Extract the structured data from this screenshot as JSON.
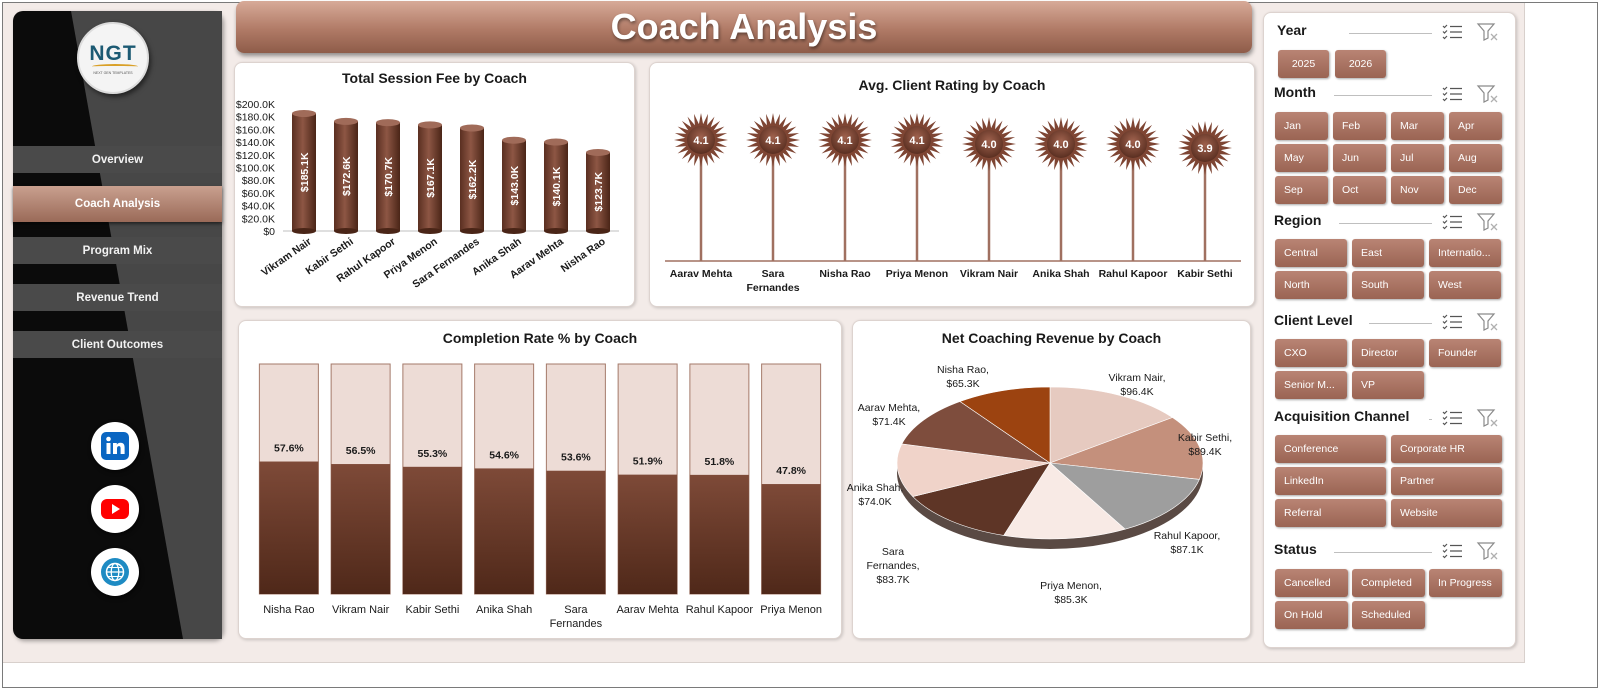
{
  "title": "Coach Analysis",
  "logo": {
    "text": "NGT",
    "subtext": "NEXT GEN TEMPLATES"
  },
  "nav": [
    "Overview",
    "Coach Analysis",
    "Program Mix",
    "Revenue Trend",
    "Client Outcomes"
  ],
  "active_nav": "Coach Analysis",
  "social_icons": [
    "linkedin-icon",
    "youtube-icon",
    "globe-icon"
  ],
  "colors": {
    "accent": "#7b4433",
    "button": "#a86f5e",
    "sidebar": "#0b0b0b",
    "nav_button": "#4a4a4a",
    "background": "#f3ebe8"
  },
  "slicers": [
    {
      "id": "year",
      "title": "Year",
      "items": [
        "2025",
        "2026"
      ]
    },
    {
      "id": "month",
      "title": "Month",
      "items": [
        "Jan",
        "Feb",
        "Mar",
        "Apr",
        "May",
        "Jun",
        "Jul",
        "Aug",
        "Sep",
        "Oct",
        "Nov",
        "Dec"
      ]
    },
    {
      "id": "region",
      "title": "Region",
      "items": [
        "Central",
        "East",
        "Internatio...",
        "North",
        "South",
        "West"
      ]
    },
    {
      "id": "client_level",
      "title": "Client Level",
      "items": [
        "CXO",
        "Director",
        "Founder",
        "Senior M...",
        "VP"
      ]
    },
    {
      "id": "acquisition",
      "title": "Acquisition Channel",
      "items": [
        "Conference",
        "Corporate HR",
        "LinkedIn",
        "Partner",
        "Referral",
        "Website"
      ]
    },
    {
      "id": "status",
      "title": "Status",
      "items": [
        "Cancelled",
        "Completed",
        "In Progress",
        "On Hold",
        "Scheduled"
      ]
    }
  ],
  "chart_data": [
    {
      "id": "session_fee",
      "type": "bar",
      "title": "Total Session Fee by Coach",
      "categories": [
        "Vikram Nair",
        "Kabir Sethi",
        "Rahul Kapoor",
        "Priya Menon",
        "Sara Fernandes",
        "Anika Shah",
        "Aarav Mehta",
        "Nisha Rao"
      ],
      "values": [
        185.1,
        172.6,
        170.7,
        167.1,
        162.2,
        143.0,
        140.1,
        123.7
      ],
      "data_labels": [
        "$185.1K",
        "$172.6K",
        "$170.7K",
        "$167.1K",
        "$162.2K",
        "$143.0K",
        "$140.1K",
        "$123.7K"
      ],
      "y_ticks": [
        "$200.0K",
        "$180.0K",
        "$160.0K",
        "$140.0K",
        "$120.0K",
        "$100.0K",
        "$80.0K",
        "$60.0K",
        "$40.0K",
        "$20.0K",
        "$0"
      ],
      "ylim": [
        0,
        200
      ]
    },
    {
      "id": "client_rating",
      "type": "bar",
      "title": "Avg. Client Rating by Coach",
      "categories": [
        "Aarav Mehta",
        "Sara Fernandes",
        "Nisha Rao",
        "Priya Menon",
        "Vikram Nair",
        "Anika Shah",
        "Rahul Kapoor",
        "Kabir Sethi"
      ],
      "values": [
        4.1,
        4.1,
        4.1,
        4.1,
        4.0,
        4.0,
        4.0,
        3.9
      ],
      "data_labels": [
        "4.1",
        "4.1",
        "4.1",
        "4.1",
        "4.0",
        "4.0",
        "4.0",
        "3.9"
      ]
    },
    {
      "id": "completion_rate",
      "type": "bar",
      "title": "Completion Rate % by Coach",
      "categories": [
        "Nisha Rao",
        "Vikram Nair",
        "Kabir Sethi",
        "Anika Shah",
        "Sara Fernandes",
        "Aarav Mehta",
        "Rahul Kapoor",
        "Priya Menon"
      ],
      "values": [
        57.6,
        56.5,
        55.3,
        54.6,
        53.6,
        51.9,
        51.8,
        47.8
      ],
      "data_labels": [
        "57.6%",
        "56.5%",
        "55.3%",
        "54.6%",
        "53.6%",
        "51.9%",
        "51.8%",
        "47.8%"
      ],
      "ylim": [
        0,
        100
      ]
    },
    {
      "id": "net_revenue",
      "type": "pie",
      "title": "Net Coaching Revenue by Coach",
      "categories": [
        "Vikram Nair",
        "Kabir Sethi",
        "Rahul Kapoor",
        "Priya Menon",
        "Sara Fernandes",
        "Anika Shah",
        "Aarav Mehta",
        "Nisha Rao"
      ],
      "values": [
        96.4,
        89.4,
        87.1,
        85.3,
        83.7,
        74.0,
        71.4,
        65.3
      ],
      "data_labels": [
        "Vikram Nair,\n$96.4K",
        "Kabir Sethi,\n$89.4K",
        "Rahul Kapoor,\n$87.1K",
        "Priya Menon,\n$85.3K",
        "Sara\nFernandes,\n$83.7K",
        "Anika Shah,\n$74.0K",
        "Aarav Mehta,\n$71.4K",
        "Nisha Rao,\n$65.3K"
      ],
      "colors": [
        "#e6cac0",
        "#c4907c",
        "#9e9e9e",
        "#f8eae5",
        "#5e3526",
        "#f0d3c9",
        "#7e4d3d",
        "#9c4310"
      ]
    }
  ]
}
